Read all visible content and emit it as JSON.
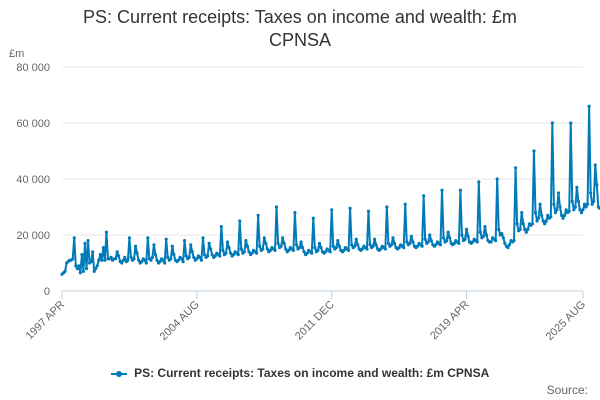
{
  "title_line1": "PS: Current receipts: Taxes on income and wealth: £m",
  "title_line2": "CPNSA",
  "y_unit": "£m",
  "source_label": "Source:",
  "colors": {
    "series": "#007ab8",
    "grid": "#e6e6e6",
    "axis": "#c0d0e0",
    "text": "#666666"
  },
  "chart_data": {
    "type": "line",
    "title": "PS: Current receipts: Taxes on income and wealth: £m CPNSA",
    "ylabel": "£m",
    "ylim": [
      0,
      80000
    ],
    "yticks": [
      0,
      20000,
      40000,
      60000,
      80000
    ],
    "ytick_labels": [
      "0",
      "20 000",
      "40 000",
      "60 000",
      "80 000"
    ],
    "xlim": [
      "1997-04",
      "2025-08"
    ],
    "xticks": [
      "1997-04",
      "2004-08",
      "2011-12",
      "2019-04",
      "2025-08"
    ],
    "xtick_labels": [
      "1997 APR",
      "2004 AUG",
      "2011 DEC",
      "2019 APR",
      "2025 AUG"
    ],
    "grid": true,
    "legend_position": "bottom",
    "series": [
      {
        "name": "PS: Current receipts: Taxes on income and wealth: £m CPNSA",
        "start": "1997-04",
        "frequency": "monthly",
        "values": [
          6000,
          6500,
          7000,
          10000,
          10500,
          11000,
          11000,
          11500,
          19000,
          9000,
          8000,
          9000,
          6500,
          13000,
          7000,
          17000,
          8000,
          18000,
          10000,
          10500,
          14000,
          7000,
          8000,
          9000,
          11000,
          13000,
          11000,
          15500,
          11000,
          21000,
          11500,
          11500,
          12000,
          11000,
          11500,
          11500,
          14000,
          12500,
          10500,
          10000,
          11000,
          12000,
          10500,
          11000,
          19000,
          12000,
          11000,
          11500,
          16000,
          13500,
          11000,
          10000,
          10500,
          11500,
          11000,
          10000,
          19000,
          11500,
          11000,
          12000,
          16500,
          13000,
          11000,
          10000,
          10500,
          11500,
          11000,
          10000,
          18500,
          12000,
          11000,
          11500,
          16000,
          13000,
          11000,
          10500,
          11000,
          12000,
          11500,
          10500,
          18000,
          12500,
          11500,
          12000,
          16500,
          14000,
          12000,
          11000,
          11500,
          12500,
          12000,
          11000,
          19000,
          13000,
          12000,
          12500,
          17000,
          15000,
          13000,
          12000,
          12500,
          13500,
          13000,
          12500,
          23000,
          14500,
          13000,
          13500,
          17500,
          15500,
          13500,
          12500,
          13000,
          14000,
          13500,
          13000,
          25000,
          15000,
          13500,
          14000,
          18000,
          16000,
          14000,
          13000,
          13500,
          14500,
          14000,
          13500,
          27000,
          16000,
          14500,
          15000,
          19000,
          17000,
          15000,
          14000,
          14500,
          15500,
          15000,
          14500,
          30000,
          17000,
          15500,
          16000,
          19000,
          17000,
          15000,
          14000,
          14500,
          15500,
          15000,
          14500,
          28000,
          16500,
          15000,
          15500,
          17500,
          15500,
          14000,
          13000,
          13500,
          14500,
          14000,
          13500,
          26000,
          15500,
          14000,
          14500,
          17000,
          15500,
          14000,
          13500,
          14000,
          15000,
          14500,
          14000,
          29000,
          16000,
          15000,
          15500,
          18000,
          16000,
          14500,
          14000,
          14500,
          15500,
          15000,
          14500,
          29500,
          16500,
          15500,
          16000,
          18500,
          16500,
          15000,
          14500,
          15000,
          16000,
          15500,
          15000,
          28500,
          16500,
          15500,
          16000,
          18500,
          16500,
          15000,
          14500,
          15000,
          16000,
          15500,
          15000,
          30000,
          17000,
          16000,
          16500,
          19000,
          17000,
          15500,
          15000,
          15500,
          16500,
          16000,
          15500,
          31000,
          17500,
          16500,
          17000,
          19500,
          17500,
          16000,
          15500,
          16000,
          17000,
          16500,
          16000,
          34000,
          18500,
          17000,
          17500,
          20000,
          18000,
          16500,
          16000,
          16500,
          17500,
          17000,
          16500,
          36000,
          19000,
          17500,
          18000,
          21000,
          19000,
          17000,
          16500,
          17000,
          18000,
          17500,
          17000,
          36000,
          20000,
          18000,
          18500,
          22000,
          19500,
          17500,
          17000,
          17500,
          18500,
          18000,
          17500,
          39000,
          21000,
          19000,
          19500,
          23000,
          20000,
          18000,
          17500,
          17500,
          19000,
          18500,
          18000,
          40000,
          22000,
          20000,
          20500,
          19000,
          17000,
          16000,
          15500,
          16500,
          18000,
          17500,
          18000,
          44000,
          24000,
          21500,
          22000,
          28000,
          24000,
          22000,
          21000,
          22000,
          24000,
          23500,
          24000,
          50000,
          28000,
          25000,
          26000,
          31000,
          27000,
          25000,
          24000,
          25000,
          27000,
          26000,
          26500,
          60000,
          31000,
          28000,
          29000,
          35000,
          30000,
          27000,
          26000,
          27000,
          29000,
          28000,
          28500,
          60000,
          32000,
          29000,
          30000,
          37000,
          32000,
          29000,
          28000,
          29000,
          31000,
          30000,
          31000,
          66000,
          35000,
          31000,
          32000,
          45000,
          38000,
          30000,
          29500,
          30000
        ]
      }
    ]
  }
}
